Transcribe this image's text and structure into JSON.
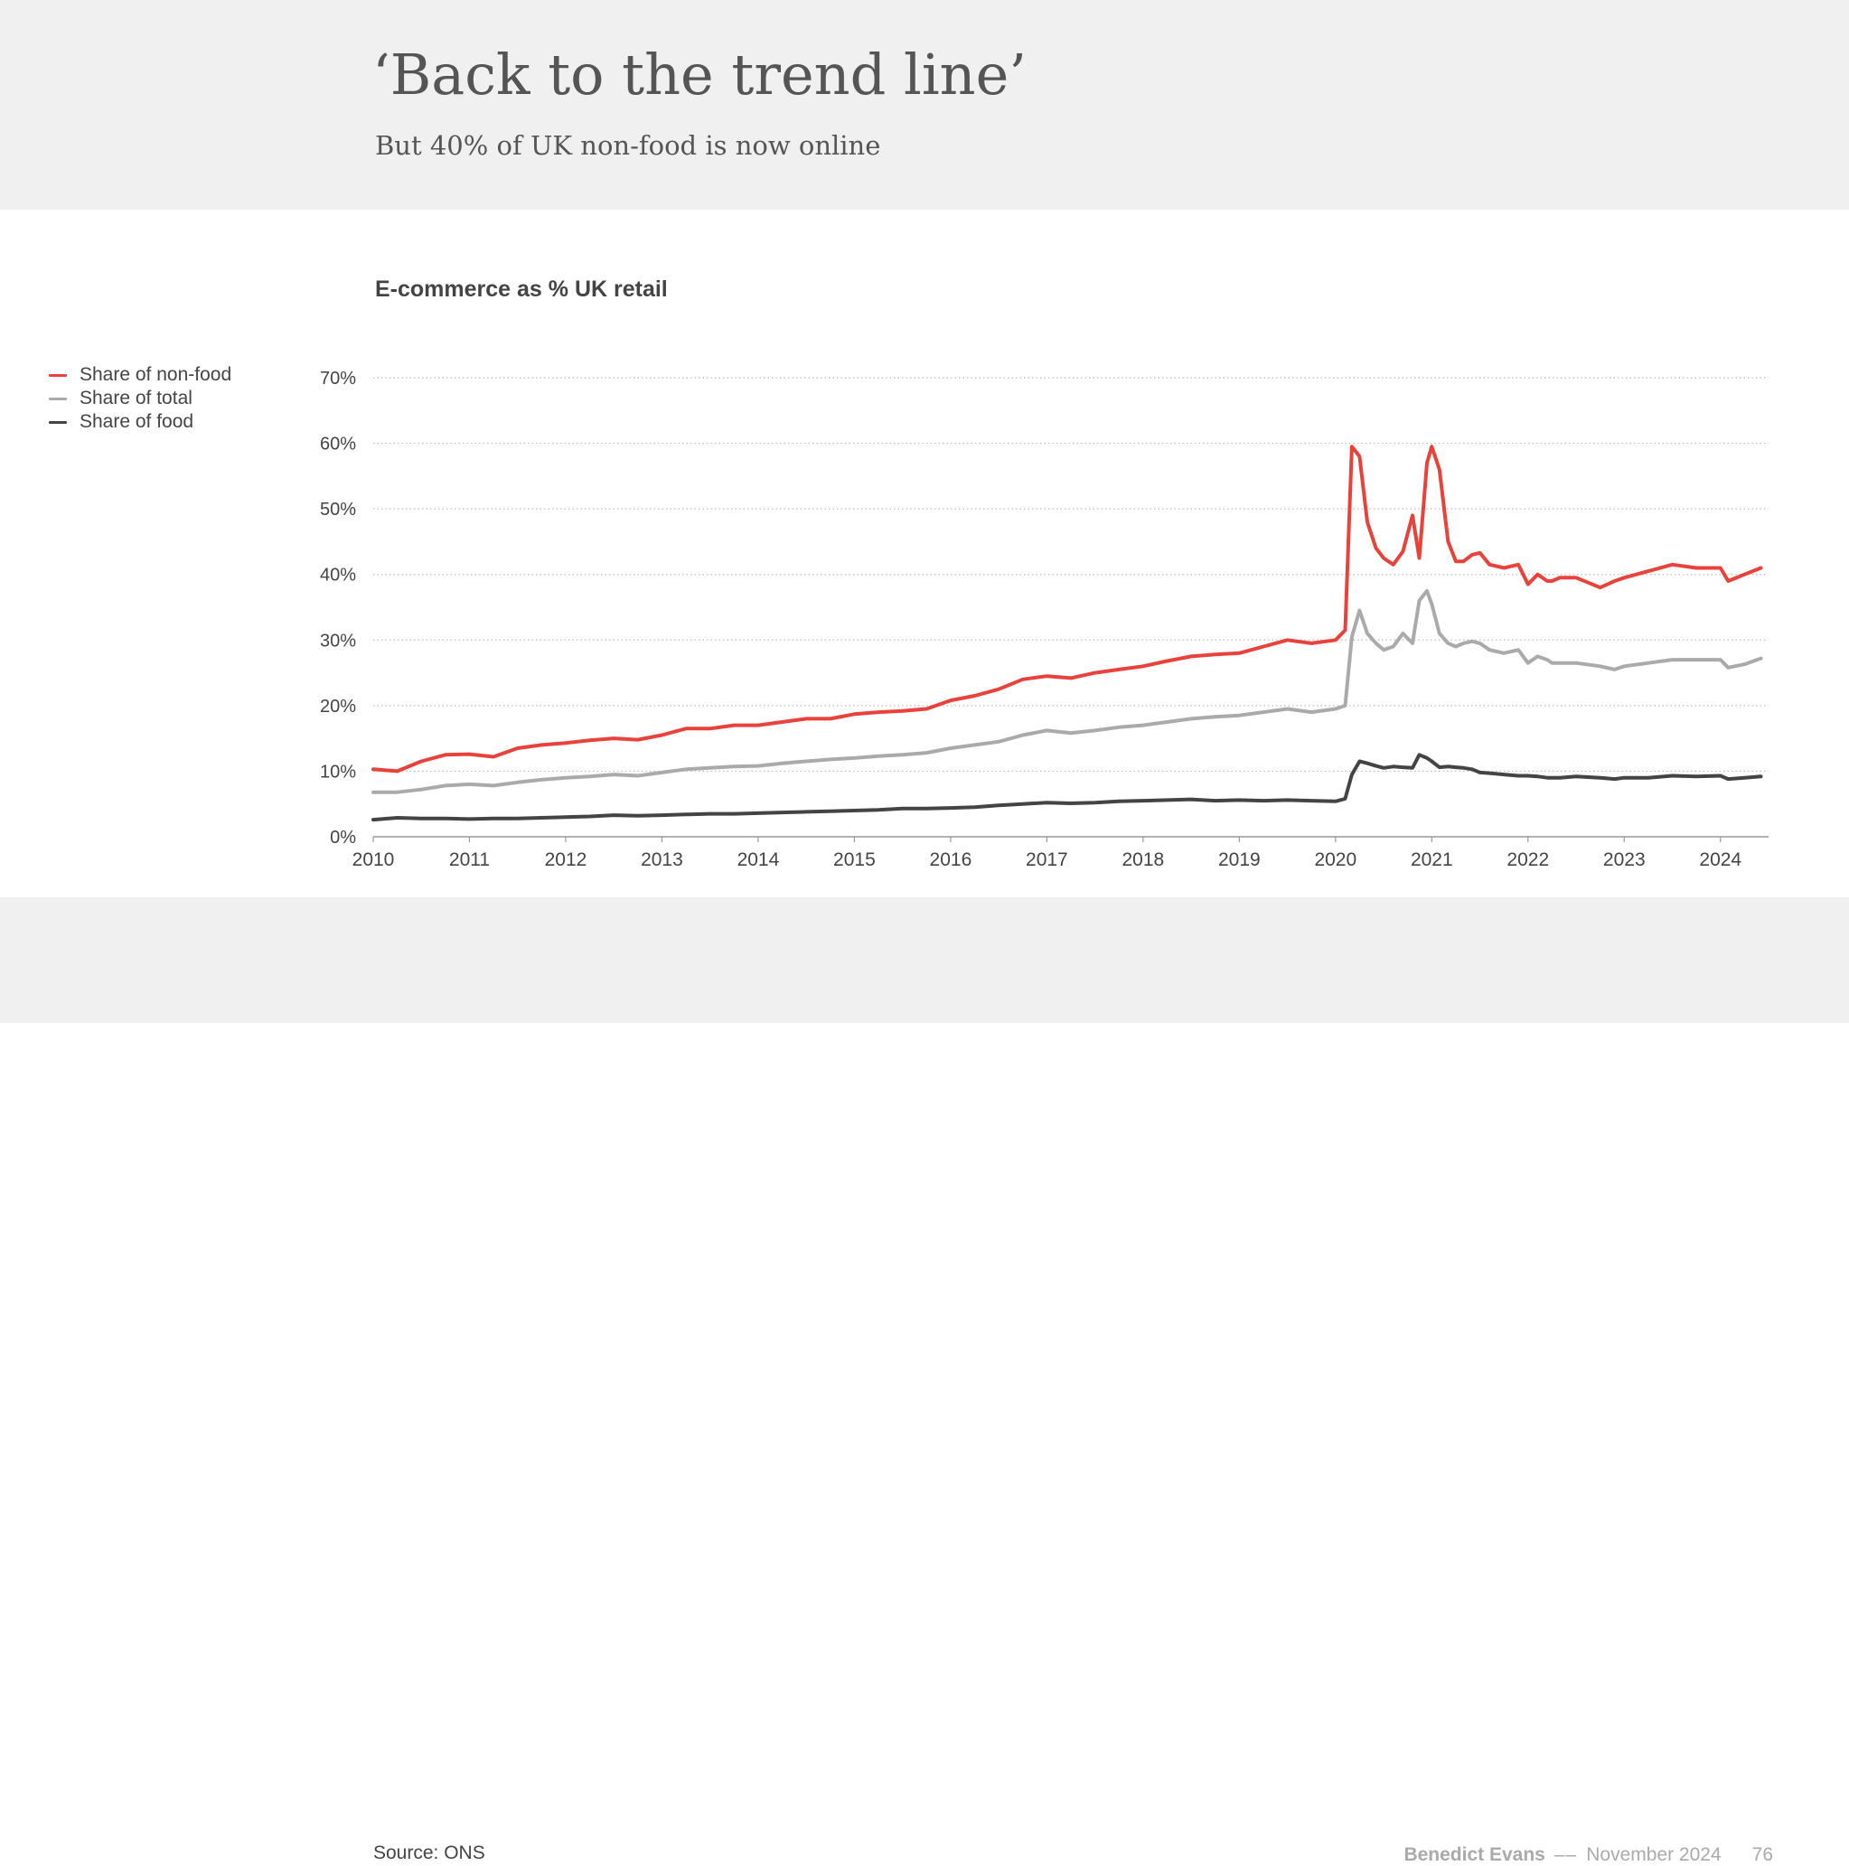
{
  "header": {
    "title": "‘Back to the trend line’",
    "subtitle": "But 40% of UK non-food is now online"
  },
  "chart_data": {
    "type": "line",
    "title": "E-commerce as % UK retail",
    "xlabel": "",
    "ylabel": "",
    "xlim": [
      2010,
      2024.5
    ],
    "ylim": [
      0,
      70
    ],
    "yticks": [
      0,
      10,
      20,
      30,
      40,
      50,
      60,
      70
    ],
    "ytick_labels": [
      "0%",
      "10%",
      "20%",
      "30%",
      "40%",
      "50%",
      "60%",
      "70%"
    ],
    "xticks": [
      2010,
      2011,
      2012,
      2013,
      2014,
      2015,
      2016,
      2017,
      2018,
      2019,
      2020,
      2021,
      2022,
      2023,
      2024
    ],
    "xtick_labels": [
      "2010",
      "2011",
      "2012",
      "2013",
      "2014",
      "2015",
      "2016",
      "2017",
      "2018",
      "2019",
      "2020",
      "2021",
      "2022",
      "2023",
      "2024"
    ],
    "grid": "horizontal dotted",
    "legend_position": "left",
    "series": [
      {
        "name": "Share of non-food",
        "color": "#e8423a",
        "x": [
          2010.0,
          2010.25,
          2010.5,
          2010.75,
          2011.0,
          2011.25,
          2011.5,
          2011.75,
          2012.0,
          2012.25,
          2012.5,
          2012.75,
          2013.0,
          2013.25,
          2013.5,
          2013.75,
          2014.0,
          2014.25,
          2014.5,
          2014.75,
          2015.0,
          2015.25,
          2015.5,
          2015.75,
          2016.0,
          2016.25,
          2016.5,
          2016.75,
          2017.0,
          2017.25,
          2017.5,
          2017.75,
          2018.0,
          2018.25,
          2018.5,
          2018.75,
          2019.0,
          2019.25,
          2019.5,
          2019.75,
          2020.0,
          2020.1,
          2020.17,
          2020.25,
          2020.33,
          2020.42,
          2020.5,
          2020.6,
          2020.7,
          2020.8,
          2020.87,
          2020.95,
          2021.0,
          2021.08,
          2021.17,
          2021.25,
          2021.33,
          2021.42,
          2021.5,
          2021.6,
          2021.75,
          2021.9,
          2022.0,
          2022.1,
          2022.2,
          2022.25,
          2022.33,
          2022.5,
          2022.75,
          2022.9,
          2023.0,
          2023.25,
          2023.5,
          2023.75,
          2024.0,
          2024.08,
          2024.25,
          2024.42
        ],
        "values": [
          10.3,
          10.0,
          11.5,
          12.5,
          12.6,
          12.2,
          13.5,
          14.0,
          14.3,
          14.7,
          15.0,
          14.8,
          15.5,
          16.5,
          16.5,
          17.0,
          17.0,
          17.5,
          18.0,
          18.0,
          18.7,
          19.0,
          19.2,
          19.5,
          20.8,
          21.5,
          22.5,
          24.0,
          24.5,
          24.2,
          25.0,
          25.5,
          26.0,
          26.8,
          27.5,
          27.8,
          28.0,
          29.0,
          30.0,
          29.5,
          30.0,
          31.5,
          59.5,
          58.0,
          48.0,
          44.0,
          42.5,
          41.5,
          43.5,
          49.0,
          42.5,
          57.0,
          59.5,
          56.0,
          45.0,
          42.0,
          42.0,
          43.0,
          43.3,
          41.5,
          41.0,
          41.5,
          38.5,
          40.0,
          39.0,
          39.0,
          39.5,
          39.5,
          38.0,
          39.0,
          39.5,
          40.5,
          41.5,
          41.0,
          41.0,
          39.0,
          40.0,
          41.0
        ]
      },
      {
        "name": "Share of total",
        "color": "#aaaaaa",
        "x": [
          2010.0,
          2010.25,
          2010.5,
          2010.75,
          2011.0,
          2011.25,
          2011.5,
          2011.75,
          2012.0,
          2012.25,
          2012.5,
          2012.75,
          2013.0,
          2013.25,
          2013.5,
          2013.75,
          2014.0,
          2014.25,
          2014.5,
          2014.75,
          2015.0,
          2015.25,
          2015.5,
          2015.75,
          2016.0,
          2016.25,
          2016.5,
          2016.75,
          2017.0,
          2017.25,
          2017.5,
          2017.75,
          2018.0,
          2018.25,
          2018.5,
          2018.75,
          2019.0,
          2019.25,
          2019.5,
          2019.75,
          2020.0,
          2020.1,
          2020.17,
          2020.25,
          2020.33,
          2020.42,
          2020.5,
          2020.6,
          2020.7,
          2020.8,
          2020.87,
          2020.95,
          2021.0,
          2021.08,
          2021.17,
          2021.25,
          2021.33,
          2021.42,
          2021.5,
          2021.6,
          2021.75,
          2021.9,
          2022.0,
          2022.1,
          2022.2,
          2022.25,
          2022.33,
          2022.5,
          2022.75,
          2022.9,
          2023.0,
          2023.25,
          2023.5,
          2023.75,
          2024.0,
          2024.08,
          2024.25,
          2024.42
        ],
        "values": [
          6.8,
          6.8,
          7.2,
          7.8,
          8.0,
          7.8,
          8.3,
          8.7,
          9.0,
          9.2,
          9.5,
          9.3,
          9.8,
          10.3,
          10.5,
          10.7,
          10.8,
          11.2,
          11.5,
          11.8,
          12.0,
          12.3,
          12.5,
          12.8,
          13.5,
          14.0,
          14.5,
          15.5,
          16.2,
          15.8,
          16.2,
          16.7,
          17.0,
          17.5,
          18.0,
          18.3,
          18.5,
          19.0,
          19.5,
          19.0,
          19.5,
          20.0,
          30.5,
          34.5,
          31.0,
          29.5,
          28.5,
          29.0,
          31.0,
          29.5,
          36.0,
          37.5,
          35.5,
          31.0,
          29.5,
          29.0,
          29.5,
          29.8,
          29.5,
          28.5,
          28.0,
          28.5,
          26.5,
          27.5,
          27.0,
          26.5,
          26.5,
          26.5,
          26.0,
          25.5,
          26.0,
          26.5,
          27.0,
          27.0,
          27.0,
          25.8,
          26.3,
          27.2
        ]
      },
      {
        "name": "Share of food",
        "color": "#444444",
        "x": [
          2010.0,
          2010.25,
          2010.5,
          2010.75,
          2011.0,
          2011.25,
          2011.5,
          2011.75,
          2012.0,
          2012.25,
          2012.5,
          2012.75,
          2013.0,
          2013.25,
          2013.5,
          2013.75,
          2014.0,
          2014.25,
          2014.5,
          2014.75,
          2015.0,
          2015.25,
          2015.5,
          2015.75,
          2016.0,
          2016.25,
          2016.5,
          2016.75,
          2017.0,
          2017.25,
          2017.5,
          2017.75,
          2018.0,
          2018.25,
          2018.5,
          2018.75,
          2019.0,
          2019.25,
          2019.5,
          2019.75,
          2020.0,
          2020.1,
          2020.17,
          2020.25,
          2020.33,
          2020.42,
          2020.5,
          2020.6,
          2020.7,
          2020.8,
          2020.87,
          2020.95,
          2021.0,
          2021.08,
          2021.17,
          2021.25,
          2021.33,
          2021.42,
          2021.5,
          2021.6,
          2021.75,
          2021.9,
          2022.0,
          2022.1,
          2022.2,
          2022.25,
          2022.33,
          2022.5,
          2022.75,
          2022.9,
          2023.0,
          2023.25,
          2023.5,
          2023.75,
          2024.0,
          2024.08,
          2024.25,
          2024.42
        ],
        "values": [
          2.6,
          2.9,
          2.8,
          2.8,
          2.7,
          2.8,
          2.8,
          2.9,
          3.0,
          3.1,
          3.3,
          3.2,
          3.3,
          3.4,
          3.5,
          3.5,
          3.6,
          3.7,
          3.8,
          3.9,
          4.0,
          4.1,
          4.3,
          4.3,
          4.4,
          4.5,
          4.8,
          5.0,
          5.2,
          5.1,
          5.2,
          5.4,
          5.5,
          5.6,
          5.7,
          5.5,
          5.6,
          5.5,
          5.6,
          5.5,
          5.4,
          5.8,
          9.5,
          11.5,
          11.2,
          10.8,
          10.5,
          10.7,
          10.6,
          10.5,
          12.5,
          12.0,
          11.5,
          10.6,
          10.7,
          10.6,
          10.5,
          10.3,
          9.8,
          9.7,
          9.5,
          9.3,
          9.3,
          9.2,
          9.0,
          9.0,
          9.0,
          9.2,
          9.0,
          8.8,
          9.0,
          9.0,
          9.3,
          9.2,
          9.3,
          8.8,
          9.0,
          9.2
        ]
      }
    ]
  },
  "footer": {
    "source": "Source: ONS",
    "author": "Benedict Evans",
    "separator": "––",
    "date": "November 2024",
    "page": "76"
  }
}
